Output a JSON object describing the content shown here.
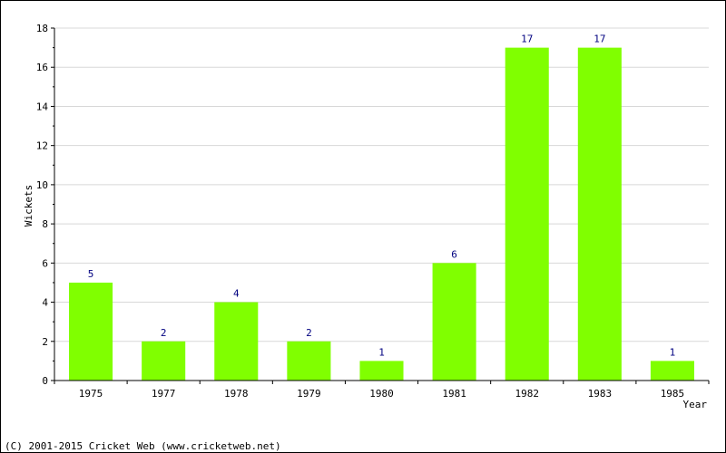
{
  "chart_data": {
    "type": "bar",
    "categories": [
      "1975",
      "1977",
      "1978",
      "1979",
      "1980",
      "1981",
      "1982",
      "1983",
      "1985"
    ],
    "values": [
      5,
      2,
      4,
      2,
      1,
      6,
      17,
      17,
      1
    ],
    "title": "",
    "xlabel": "Year",
    "ylabel": "Wickets",
    "ylim": [
      0,
      18
    ],
    "yticks": [
      0,
      2,
      4,
      6,
      8,
      10,
      12,
      14,
      16,
      18
    ],
    "grid": true,
    "data_labels": true,
    "bar_color": "#80ff00",
    "grid_color": "#d8d8d8",
    "data_label_color": "#000080"
  },
  "footer": {
    "copyright": "(C) 2001-2015 Cricket Web (www.cricketweb.net)"
  }
}
